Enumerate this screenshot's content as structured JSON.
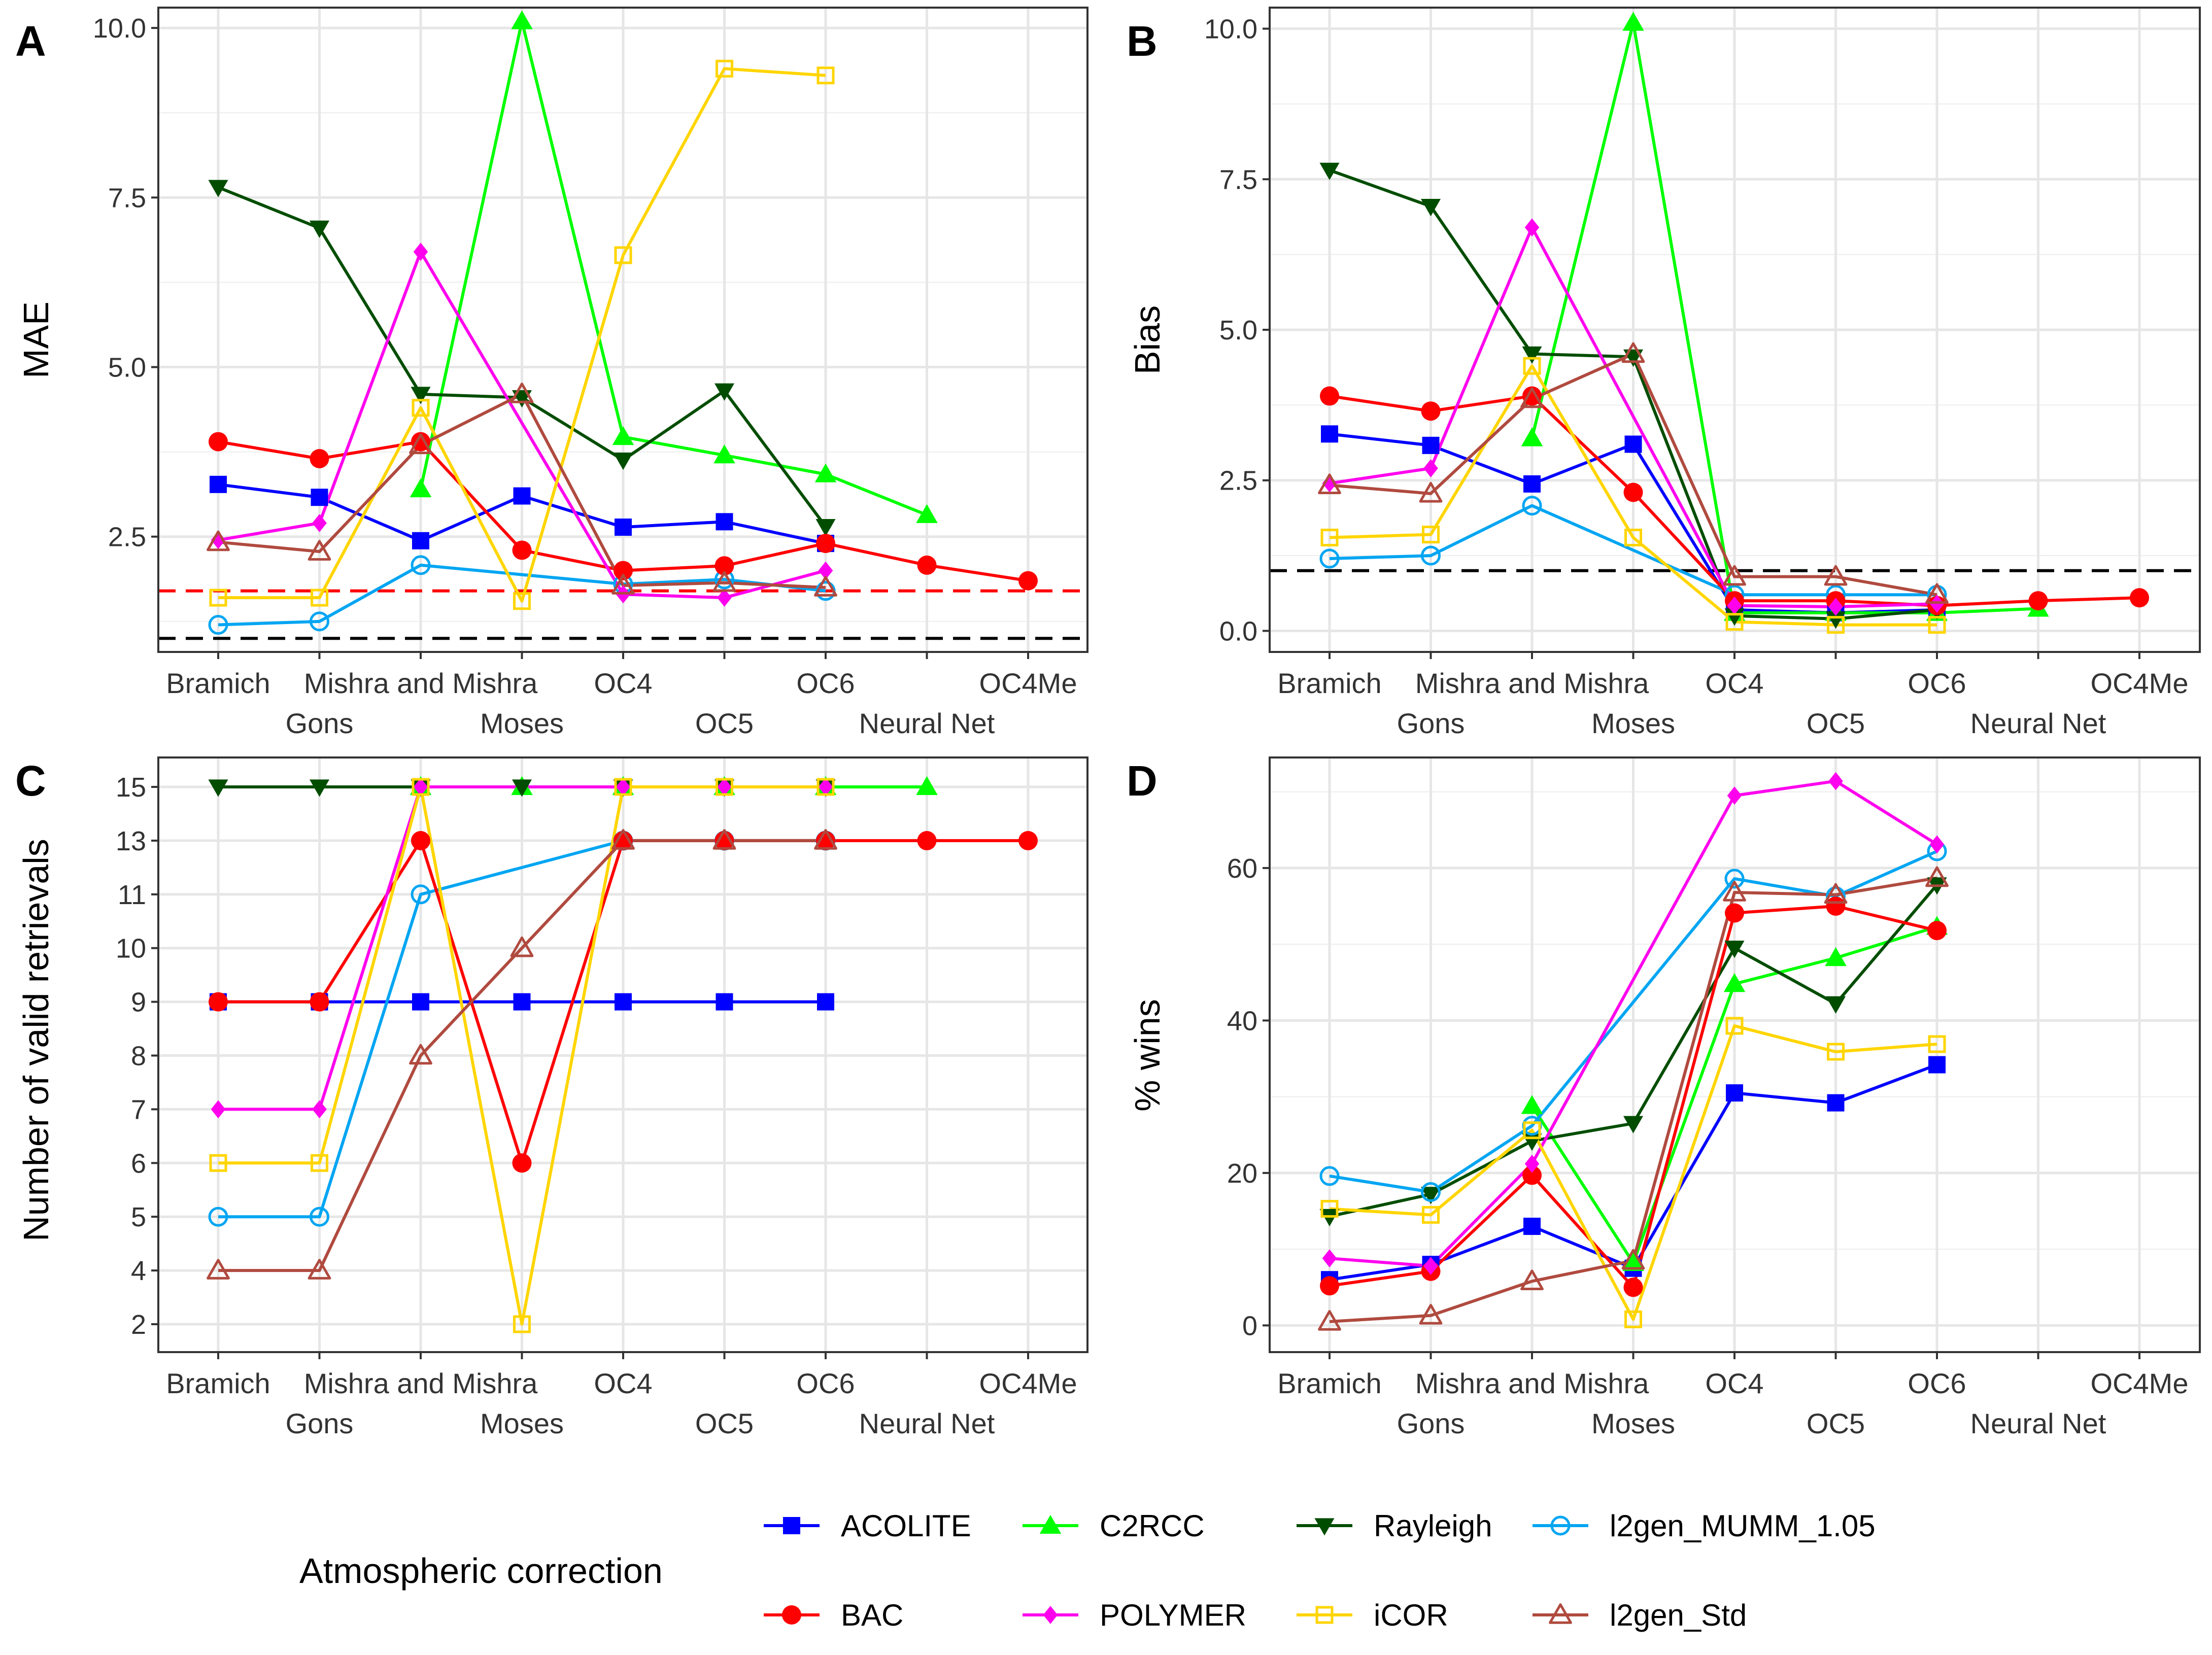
{
  "legend": {
    "title": "Atmospheric correction",
    "entries": [
      "ACOLITE",
      "C2RCC",
      "Rayleigh",
      "l2gen_MUMM_1.05",
      "BAC",
      "POLYMER",
      "iCOR",
      "l2gen_Std"
    ]
  },
  "series_style": {
    "ACOLITE": {
      "color": "#0000ff",
      "marker": "square-filled"
    },
    "C2RCC": {
      "color": "#00ff00",
      "marker": "triangle-up-filled"
    },
    "Rayleigh": {
      "color": "#004d00",
      "marker": "triangle-down-filled"
    },
    "l2gen_MUMM_1.05": {
      "color": "#00a5f2",
      "marker": "circle-open"
    },
    "BAC": {
      "color": "#ff0000",
      "marker": "circle-filled"
    },
    "POLYMER": {
      "color": "#ff00ee",
      "marker": "diamond-filled"
    },
    "iCOR": {
      "color": "#ffd500",
      "marker": "square-open"
    },
    "l2gen_Std": {
      "color": "#b04a3f",
      "marker": "triangle-up-open"
    }
  },
  "reference_colors": {
    "black_line": "#000000",
    "red_line": "#ff0000"
  },
  "chart_data": [
    {
      "panel": "A",
      "type": "line",
      "ylabel": "MAE",
      "categories": [
        "Bramich",
        "Gons",
        "Mishra and Mishra",
        "Moses",
        "OC4",
        "OC5",
        "OC6",
        "Neural Net",
        "OC4Me"
      ],
      "x_tick_labels_row1": [
        "Bramich",
        "",
        "Mishra and Mishra",
        "",
        "OC4",
        "",
        "OC6",
        "",
        "OC4Me"
      ],
      "x_tick_labels_row2": [
        "",
        "Gons",
        "",
        "Moses",
        "",
        "OC5",
        "",
        "Neural Net",
        ""
      ],
      "ylim": [
        0.8,
        10.3
      ],
      "yticks": [
        2.5,
        5.0,
        7.5,
        10.0
      ],
      "ytick_labels": [
        "2.5",
        "5.0",
        "7.5",
        "10.0"
      ],
      "hlines": [
        {
          "y": 1.0,
          "color": "black"
        },
        {
          "y": 1.7,
          "color": "red"
        }
      ],
      "series": [
        {
          "name": "ACOLITE",
          "values": [
            3.27,
            3.08,
            2.44,
            3.1,
            2.64,
            2.72,
            2.4,
            null,
            null
          ]
        },
        {
          "name": "C2RCC",
          "values": [
            null,
            null,
            3.2,
            10.1,
            3.97,
            3.7,
            3.42,
            2.82,
            null
          ]
        },
        {
          "name": "Rayleigh",
          "values": [
            7.65,
            7.05,
            4.6,
            4.55,
            3.63,
            4.65,
            2.65,
            null,
            null
          ]
        },
        {
          "name": "l2gen_MUMM_1.05",
          "values": [
            1.2,
            1.25,
            2.08,
            null,
            1.8,
            1.87,
            1.7,
            null,
            null
          ]
        },
        {
          "name": "BAC",
          "values": [
            3.9,
            3.65,
            3.9,
            2.3,
            2.0,
            2.07,
            2.4,
            2.08,
            1.85
          ]
        },
        {
          "name": "POLYMER",
          "values": [
            2.45,
            2.7,
            6.7,
            null,
            1.65,
            1.6,
            2.0,
            null,
            null
          ]
        },
        {
          "name": "iCOR",
          "values": [
            1.6,
            1.6,
            4.4,
            1.55,
            6.65,
            9.4,
            9.3,
            null,
            null
          ]
        },
        {
          "name": "l2gen_Std",
          "values": [
            2.42,
            2.28,
            3.85,
            4.6,
            1.78,
            1.82,
            1.75,
            null,
            null
          ]
        }
      ]
    },
    {
      "panel": "B",
      "type": "line",
      "ylabel": "Bias",
      "categories": [
        "Bramich",
        "Gons",
        "Mishra and Mishra",
        "Moses",
        "OC4",
        "OC5",
        "OC6",
        "Neural Net",
        "OC4Me"
      ],
      "x_tick_labels_row1": [
        "Bramich",
        "",
        "Mishra and Mishra",
        "",
        "OC4",
        "",
        "OC6",
        "",
        "OC4Me"
      ],
      "x_tick_labels_row2": [
        "",
        "Gons",
        "",
        "Moses",
        "",
        "OC5",
        "",
        "Neural Net",
        ""
      ],
      "ylim": [
        -0.35,
        10.35
      ],
      "yticks": [
        0.0,
        2.5,
        5.0,
        7.5,
        10.0
      ],
      "ytick_labels": [
        "0.0",
        "2.5",
        "5.0",
        "7.5",
        "10.0"
      ],
      "hlines": [
        {
          "y": 1.0,
          "color": "black"
        }
      ],
      "series": [
        {
          "name": "ACOLITE",
          "values": [
            3.27,
            3.08,
            2.44,
            3.1,
            0.35,
            0.3,
            0.35,
            null,
            null
          ]
        },
        {
          "name": "C2RCC",
          "values": [
            null,
            null,
            3.2,
            10.1,
            0.3,
            0.3,
            0.3,
            0.37,
            null
          ]
        },
        {
          "name": "Rayleigh",
          "values": [
            7.65,
            7.05,
            4.6,
            4.55,
            0.25,
            0.2,
            0.35,
            null,
            null
          ]
        },
        {
          "name": "l2gen_MUMM_1.05",
          "values": [
            1.2,
            1.25,
            2.08,
            null,
            0.6,
            0.6,
            0.6,
            null,
            null
          ]
        },
        {
          "name": "BAC",
          "values": [
            3.9,
            3.65,
            3.9,
            2.3,
            0.5,
            0.5,
            0.42,
            0.5,
            0.55
          ]
        },
        {
          "name": "POLYMER",
          "values": [
            2.45,
            2.7,
            6.7,
            null,
            0.42,
            0.4,
            0.45,
            null,
            null
          ]
        },
        {
          "name": "iCOR",
          "values": [
            1.55,
            1.6,
            4.4,
            1.55,
            0.15,
            0.1,
            0.1,
            null,
            null
          ]
        },
        {
          "name": "l2gen_Std",
          "values": [
            2.42,
            2.28,
            3.85,
            4.6,
            0.9,
            0.9,
            0.6,
            null,
            null
          ]
        }
      ]
    },
    {
      "panel": "C",
      "type": "line",
      "ylabel": "Number of valid retrievals",
      "categories": [
        "Bramich",
        "Gons",
        "Mishra and Mishra",
        "Moses",
        "OC4",
        "OC5",
        "OC6",
        "Neural Net",
        "OC4Me"
      ],
      "x_tick_labels_row1": [
        "Bramich",
        "",
        "Mishra and Mishra",
        "",
        "OC4",
        "",
        "OC6",
        "",
        "OC4Me"
      ],
      "x_tick_labels_row2": [
        "",
        "Gons",
        "",
        "Moses",
        "",
        "OC5",
        "",
        "Neural Net",
        ""
      ],
      "y_scale": "categorical",
      "ylevels": [
        2,
        4,
        5,
        6,
        7,
        8,
        9,
        10,
        11,
        13,
        15
      ],
      "ytick_labels": [
        "2",
        "4",
        "5",
        "6",
        "7",
        "8",
        "9",
        "10",
        "11",
        "13",
        "15"
      ],
      "series": [
        {
          "name": "ACOLITE",
          "values": [
            9,
            9,
            9,
            9,
            9,
            9,
            9,
            null,
            null
          ]
        },
        {
          "name": "C2RCC",
          "values": [
            null,
            null,
            15,
            15,
            15,
            15,
            15,
            15,
            null
          ]
        },
        {
          "name": "Rayleigh",
          "values": [
            15,
            15,
            15,
            15,
            15,
            15,
            15,
            null,
            null
          ]
        },
        {
          "name": "l2gen_MUMM_1.05",
          "values": [
            5,
            5,
            11,
            null,
            13,
            13,
            13,
            null,
            null
          ]
        },
        {
          "name": "BAC",
          "values": [
            9,
            9,
            13,
            6,
            13,
            13,
            13,
            13,
            13
          ]
        },
        {
          "name": "POLYMER",
          "values": [
            7,
            7,
            15,
            null,
            15,
            15,
            15,
            null,
            null
          ]
        },
        {
          "name": "iCOR",
          "values": [
            6,
            6,
            15,
            2,
            15,
            15,
            15,
            null,
            null
          ]
        },
        {
          "name": "l2gen_Std",
          "values": [
            4,
            4,
            8,
            10,
            13,
            13,
            13,
            null,
            null
          ]
        }
      ]
    },
    {
      "panel": "D",
      "type": "line",
      "ylabel": "% wins",
      "categories": [
        "Bramich",
        "Gons",
        "Mishra and Mishra",
        "Moses",
        "OC4",
        "OC5",
        "OC6",
        "Neural Net",
        "OC4Me"
      ],
      "x_tick_labels_row1": [
        "Bramich",
        "",
        "Mishra and Mishra",
        "",
        "OC4",
        "",
        "OC6",
        "",
        "OC4Me"
      ],
      "x_tick_labels_row2": [
        "",
        "Gons",
        "",
        "Moses",
        "",
        "OC5",
        "",
        "Neural Net",
        ""
      ],
      "ylim": [
        -3.5,
        74.5
      ],
      "yticks": [
        0,
        20,
        40,
        60
      ],
      "ytick_labels": [
        "0",
        "20",
        "40",
        "60"
      ],
      "series": [
        {
          "name": "ACOLITE",
          "values": [
            6,
            8,
            13,
            7.5,
            30.5,
            29.2,
            34.2,
            null,
            null
          ]
        },
        {
          "name": "C2RCC",
          "values": [
            null,
            null,
            28.8,
            8.2,
            44.8,
            48.2,
            52.3,
            null,
            null
          ]
        },
        {
          "name": "Rayleigh",
          "values": [
            14.3,
            17.2,
            24.2,
            26.5,
            49.5,
            42.2,
            57.8,
            null,
            null
          ]
        },
        {
          "name": "l2gen_MUMM_1.05",
          "values": [
            19.6,
            17.5,
            26.2,
            null,
            58.6,
            56.3,
            62.2,
            null,
            null
          ]
        },
        {
          "name": "BAC",
          "values": [
            5.2,
            7.1,
            19.7,
            5,
            54.1,
            55,
            51.8,
            null,
            null
          ]
        },
        {
          "name": "POLYMER",
          "values": [
            8.8,
            7.8,
            21.2,
            null,
            69.5,
            71.4,
            63.1,
            null,
            null
          ]
        },
        {
          "name": "iCOR",
          "values": [
            15.3,
            14.5,
            25.6,
            0.8,
            39.3,
            35.9,
            36.9,
            null,
            null
          ]
        },
        {
          "name": "l2gen_Std",
          "values": [
            0.5,
            1.3,
            5.8,
            8.5,
            56.8,
            56.5,
            58.7,
            null,
            null
          ]
        }
      ]
    }
  ],
  "panels": {
    "A": {
      "letter": "A",
      "ylabel": "MAE"
    },
    "B": {
      "letter": "B",
      "ylabel": "Bias"
    },
    "C": {
      "letter": "C",
      "ylabel": "Number of valid retrievals"
    },
    "D": {
      "letter": "D",
      "ylabel": "% wins"
    }
  }
}
